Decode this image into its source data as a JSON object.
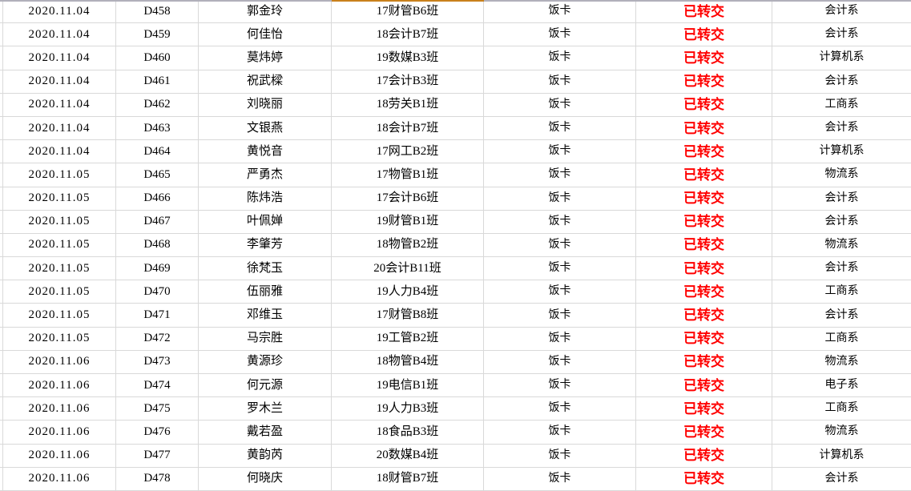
{
  "app": {
    "view": "spreadsheet-records"
  },
  "colors": {
    "grid": "#d9d9d9",
    "top_line": "#b1b0bb",
    "selection_border": "#c9811c",
    "status_text": "#ff0000",
    "text": "#000000",
    "bg": "#ffffff"
  },
  "table": {
    "columns": [
      "date",
      "id",
      "name",
      "class",
      "item",
      "status",
      "dept"
    ],
    "rows": [
      {
        "date": "2020.11.04",
        "id": "D458",
        "name": "郭金玲",
        "class": "17财管B6班",
        "item": "饭卡",
        "status": "已转交",
        "dept": "会计系"
      },
      {
        "date": "2020.11.04",
        "id": "D459",
        "name": "何佳怡",
        "class": "18会计B7班",
        "item": "饭卡",
        "status": "已转交",
        "dept": "会计系"
      },
      {
        "date": "2020.11.04",
        "id": "D460",
        "name": "莫炜婷",
        "class": "19数媒B3班",
        "item": "饭卡",
        "status": "已转交",
        "dept": "计算机系"
      },
      {
        "date": "2020.11.04",
        "id": "D461",
        "name": "祝武樑",
        "class": "17会计B3班",
        "item": "饭卡",
        "status": "已转交",
        "dept": "会计系"
      },
      {
        "date": "2020.11.04",
        "id": "D462",
        "name": "刘晓丽",
        "class": "18劳关B1班",
        "item": "饭卡",
        "status": "已转交",
        "dept": "工商系"
      },
      {
        "date": "2020.11.04",
        "id": "D463",
        "name": "文银燕",
        "class": "18会计B7班",
        "item": "饭卡",
        "status": "已转交",
        "dept": "会计系"
      },
      {
        "date": "2020.11.04",
        "id": "D464",
        "name": "黄悦音",
        "class": "17网工B2班",
        "item": "饭卡",
        "status": "已转交",
        "dept": "计算机系"
      },
      {
        "date": "2020.11.05",
        "id": "D465",
        "name": "严勇杰",
        "class": "17物管B1班",
        "item": "饭卡",
        "status": "已转交",
        "dept": "物流系"
      },
      {
        "date": "2020.11.05",
        "id": "D466",
        "name": "陈炜浩",
        "class": "17会计B6班",
        "item": "饭卡",
        "status": "已转交",
        "dept": "会计系"
      },
      {
        "date": "2020.11.05",
        "id": "D467",
        "name": "叶佩婵",
        "class": "19财管B1班",
        "item": "饭卡",
        "status": "已转交",
        "dept": "会计系"
      },
      {
        "date": "2020.11.05",
        "id": "D468",
        "name": "李肇芳",
        "class": "18物管B2班",
        "item": "饭卡",
        "status": "已转交",
        "dept": "物流系"
      },
      {
        "date": "2020.11.05",
        "id": "D469",
        "name": "徐梵玉",
        "class": "20会计B11班",
        "item": "饭卡",
        "status": "已转交",
        "dept": "会计系"
      },
      {
        "date": "2020.11.05",
        "id": "D470",
        "name": "伍丽雅",
        "class": "19人力B4班",
        "item": "饭卡",
        "status": "已转交",
        "dept": "工商系"
      },
      {
        "date": "2020.11.05",
        "id": "D471",
        "name": "邓维玉",
        "class": "17财管B8班",
        "item": "饭卡",
        "status": "已转交",
        "dept": "会计系"
      },
      {
        "date": "2020.11.05",
        "id": "D472",
        "name": "马宗胜",
        "class": "19工管B2班",
        "item": "饭卡",
        "status": "已转交",
        "dept": "工商系"
      },
      {
        "date": "2020.11.06",
        "id": "D473",
        "name": "黄源珍",
        "class": "18物管B4班",
        "item": "饭卡",
        "status": "已转交",
        "dept": "物流系"
      },
      {
        "date": "2020.11.06",
        "id": "D474",
        "name": "何元源",
        "class": "19电信B1班",
        "item": "饭卡",
        "status": "已转交",
        "dept": "电子系"
      },
      {
        "date": "2020.11.06",
        "id": "D475",
        "name": "罗木兰",
        "class": "19人力B3班",
        "item": "饭卡",
        "status": "已转交",
        "dept": "工商系"
      },
      {
        "date": "2020.11.06",
        "id": "D476",
        "name": "戴若盈",
        "class": "18食品B3班",
        "item": "饭卡",
        "status": "已转交",
        "dept": "物流系"
      },
      {
        "date": "2020.11.06",
        "id": "D477",
        "name": "黄韵芮",
        "class": "20数媒B4班",
        "item": "饭卡",
        "status": "已转交",
        "dept": "计算机系"
      },
      {
        "date": "2020.11.06",
        "id": "D478",
        "name": "何晓庆",
        "class": "18财管B7班",
        "item": "饭卡",
        "status": "已转交",
        "dept": "会计系"
      }
    ]
  }
}
